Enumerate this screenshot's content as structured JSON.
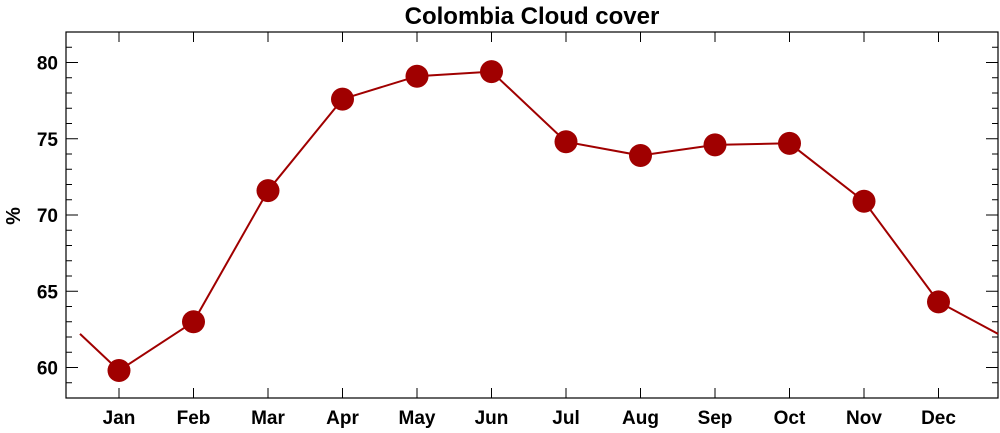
{
  "chart_data": {
    "type": "line",
    "title": "Colombia Cloud cover",
    "xlabel": "",
    "ylabel": "%",
    "categories": [
      "Jan",
      "Feb",
      "Mar",
      "Apr",
      "May",
      "Jun",
      "Jul",
      "Aug",
      "Sep",
      "Oct",
      "Nov",
      "Dec"
    ],
    "series": [
      {
        "values": [
          59.8,
          63.0,
          71.6,
          77.6,
          79.1,
          79.4,
          74.8,
          73.9,
          74.6,
          74.7,
          70.9,
          64.3
        ]
      }
    ],
    "ylim": [
      58.0,
      82.0
    ],
    "yticks": [
      60,
      65,
      70,
      75,
      80
    ],
    "wrap_left_value": 62.2,
    "wrap_right_value": 62.2,
    "grid": false,
    "colors": {
      "line": "#a00000",
      "marker": "#a00000",
      "axis": "#000000"
    }
  }
}
